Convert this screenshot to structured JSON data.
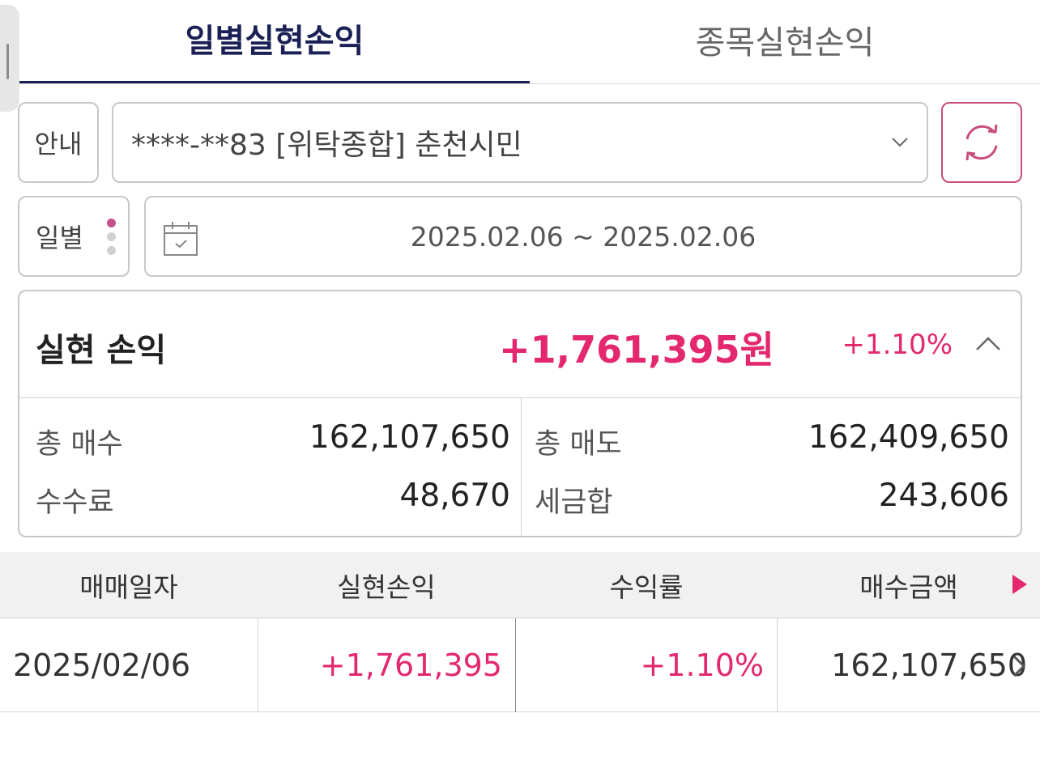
{
  "tabs": [
    {
      "label": "일별실현손익",
      "active": true
    },
    {
      "label": "종목실현손익",
      "active": false
    }
  ],
  "account": {
    "guide_label": "안내",
    "selected": "****-**83 [위탁종합] 춘천시민"
  },
  "period": {
    "mode_label": "일별",
    "date_range": "2025.02.06 ~ 2025.02.06"
  },
  "summary": {
    "title": "실현 손익",
    "amount": "+1,761,395원",
    "rate": "+1.10%",
    "stats": {
      "total_buy_label": "총 매수",
      "total_buy_value": "162,107,650",
      "total_sell_label": "총 매도",
      "total_sell_value": "162,409,650",
      "fee_label": "수수료",
      "fee_value": "48,670",
      "tax_label": "세금합",
      "tax_value": "243,606"
    }
  },
  "table": {
    "headers": [
      "매매일자",
      "실현손익",
      "수익률",
      "매수금액"
    ],
    "rows": [
      {
        "date": "2025/02/06",
        "pnl": "+1,761,395",
        "rate": "+1.10%",
        "buy_amount": "162,107,650"
      }
    ]
  },
  "colors": {
    "accent_navy": "#1b2155",
    "positive": "#e4286f",
    "refresh_border": "#c84c7c"
  },
  "icons": {
    "refresh": "refresh-icon",
    "calendar": "calendar-icon",
    "dropdown": "chevron-down-icon",
    "collapse": "chevron-up-icon",
    "more_columns": "triangle-right-icon",
    "row_detail": "chevron-right-icon"
  }
}
